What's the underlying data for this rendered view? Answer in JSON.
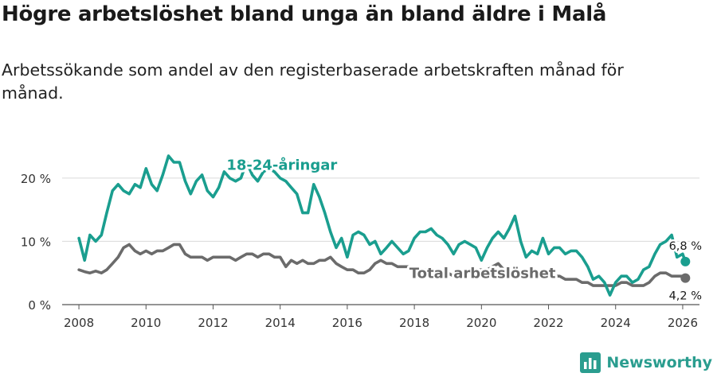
{
  "title": "Högre arbetslöshet bland unga än bland äldre i Malå",
  "subtitle": "Arbetssökande som andel av den registerbaserade arbetskraften månad för månad.",
  "brand": {
    "name": "Newsworthy",
    "icon": "newsworthy-logo-icon"
  },
  "colors": {
    "youth": "#1a9e8f",
    "total": "#6b6b6b",
    "grid": "#d9d9d9",
    "axis": "#555555",
    "brand": "#2a9d8f"
  },
  "chart_data": {
    "type": "line",
    "title": "Högre arbetslöshet bland unga än bland äldre i Malå",
    "xlabel": "",
    "ylabel": "",
    "xlim": [
      2007.5,
      2026.5
    ],
    "ylim": [
      0,
      23
    ],
    "x_ticks": [
      2008,
      2010,
      2012,
      2014,
      2016,
      2018,
      2020,
      2022,
      2024,
      2026
    ],
    "x_tick_labels": [
      "2008",
      "2010",
      "2012",
      "2014",
      "2016",
      "2018",
      "2020",
      "2022",
      "2024",
      "2026"
    ],
    "y_ticks": [
      0,
      10,
      20
    ],
    "y_tick_labels": [
      "0 %",
      "10 %",
      "20 %"
    ],
    "grid": true,
    "legend": "inline labels",
    "series": [
      {
        "name": "18-24-åringar",
        "label": "18-24-åringar",
        "end_label": "6,8 %",
        "x": [
          2008.0,
          2008.17,
          2008.33,
          2008.5,
          2008.67,
          2008.83,
          2009.0,
          2009.17,
          2009.33,
          2009.5,
          2009.67,
          2009.83,
          2010.0,
          2010.17,
          2010.33,
          2010.5,
          2010.67,
          2010.83,
          2011.0,
          2011.17,
          2011.33,
          2011.5,
          2011.67,
          2011.83,
          2012.0,
          2012.17,
          2012.33,
          2012.5,
          2012.67,
          2012.83,
          2013.0,
          2013.17,
          2013.33,
          2013.5,
          2013.67,
          2013.83,
          2014.0,
          2014.17,
          2014.33,
          2014.5,
          2014.67,
          2014.83,
          2015.0,
          2015.17,
          2015.33,
          2015.5,
          2015.67,
          2015.83,
          2016.0,
          2016.17,
          2016.33,
          2016.5,
          2016.67,
          2016.83,
          2017.0,
          2017.17,
          2017.33,
          2017.5,
          2017.67,
          2017.83,
          2018.0,
          2018.17,
          2018.33,
          2018.5,
          2018.67,
          2018.83,
          2019.0,
          2019.17,
          2019.33,
          2019.5,
          2019.67,
          2019.83,
          2020.0,
          2020.17,
          2020.33,
          2020.5,
          2020.67,
          2020.83,
          2021.0,
          2021.17,
          2021.33,
          2021.5,
          2021.67,
          2021.83,
          2022.0,
          2022.17,
          2022.33,
          2022.5,
          2022.67,
          2022.83,
          2023.0,
          2023.17,
          2023.33,
          2023.5,
          2023.67,
          2023.83,
          2024.0,
          2024.17,
          2024.33,
          2024.5,
          2024.67,
          2024.83,
          2025.0,
          2025.17,
          2025.33,
          2025.5,
          2025.67,
          2025.83,
          2026.0,
          2026.08
        ],
        "values": [
          10.5,
          7.0,
          11.0,
          10.0,
          11.0,
          14.5,
          18.0,
          19.0,
          18.0,
          17.5,
          19.0,
          18.5,
          21.5,
          19.0,
          18.0,
          20.5,
          23.5,
          22.5,
          22.5,
          19.5,
          17.5,
          19.5,
          20.5,
          18.0,
          17.0,
          18.5,
          21.0,
          20.0,
          19.5,
          20.0,
          22.5,
          20.5,
          19.5,
          21.0,
          21.5,
          21.0,
          20.0,
          19.5,
          18.5,
          17.5,
          14.5,
          14.5,
          19.0,
          17.0,
          14.5,
          11.5,
          9.0,
          10.5,
          7.5,
          11.0,
          11.5,
          11.0,
          9.5,
          10.0,
          8.0,
          9.0,
          10.0,
          9.0,
          8.0,
          8.5,
          10.5,
          11.5,
          11.5,
          12.0,
          11.0,
          10.5,
          9.5,
          8.0,
          9.5,
          10.0,
          9.5,
          9.0,
          7.0,
          9.0,
          10.5,
          11.5,
          10.5,
          12.0,
          14.0,
          10.0,
          7.5,
          8.5,
          8.0,
          10.5,
          8.0,
          9.0,
          9.0,
          8.0,
          8.5,
          8.5,
          7.5,
          6.0,
          4.0,
          4.5,
          3.5,
          1.5,
          3.5,
          4.5,
          4.5,
          3.5,
          4.0,
          5.5,
          6.0,
          8.0,
          9.5,
          10.0,
          11.0,
          7.5,
          8.0,
          6.8
        ]
      },
      {
        "name": "Total arbetslöshet",
        "label": "Total arbetslöshet",
        "end_label": "4,2 %",
        "x": [
          2008.0,
          2008.17,
          2008.33,
          2008.5,
          2008.67,
          2008.83,
          2009.0,
          2009.17,
          2009.33,
          2009.5,
          2009.67,
          2009.83,
          2010.0,
          2010.17,
          2010.33,
          2010.5,
          2010.67,
          2010.83,
          2011.0,
          2011.17,
          2011.33,
          2011.5,
          2011.67,
          2011.83,
          2012.0,
          2012.17,
          2012.33,
          2012.5,
          2012.67,
          2012.83,
          2013.0,
          2013.17,
          2013.33,
          2013.5,
          2013.67,
          2013.83,
          2014.0,
          2014.17,
          2014.33,
          2014.5,
          2014.67,
          2014.83,
          2015.0,
          2015.17,
          2015.33,
          2015.5,
          2015.67,
          2015.83,
          2016.0,
          2016.17,
          2016.33,
          2016.5,
          2016.67,
          2016.83,
          2017.0,
          2017.17,
          2017.33,
          2017.5,
          2017.67,
          2017.83,
          2018.0,
          2018.17,
          2018.33,
          2018.5,
          2018.67,
          2018.83,
          2019.0,
          2019.17,
          2019.33,
          2019.5,
          2019.67,
          2019.83,
          2020.0,
          2020.17,
          2020.33,
          2020.5,
          2020.67,
          2020.83,
          2021.0,
          2021.17,
          2021.33,
          2021.5,
          2021.67,
          2021.83,
          2022.0,
          2022.17,
          2022.33,
          2022.5,
          2022.67,
          2022.83,
          2023.0,
          2023.17,
          2023.33,
          2023.5,
          2023.67,
          2023.83,
          2024.0,
          2024.17,
          2024.33,
          2024.5,
          2024.67,
          2024.83,
          2025.0,
          2025.17,
          2025.33,
          2025.5,
          2025.67,
          2025.83,
          2026.0,
          2026.08
        ],
        "values": [
          5.5,
          5.2,
          5.0,
          5.3,
          5.0,
          5.5,
          6.5,
          7.5,
          9.0,
          9.5,
          8.5,
          8.0,
          8.5,
          8.0,
          8.5,
          8.5,
          9.0,
          9.5,
          9.5,
          8.0,
          7.5,
          7.5,
          7.5,
          7.0,
          7.5,
          7.5,
          7.5,
          7.5,
          7.0,
          7.5,
          8.0,
          8.0,
          7.5,
          8.0,
          8.0,
          7.5,
          7.5,
          6.0,
          7.0,
          6.5,
          7.0,
          6.5,
          6.5,
          7.0,
          7.0,
          7.5,
          6.5,
          6.0,
          5.5,
          5.5,
          5.0,
          5.0,
          5.5,
          6.5,
          7.0,
          6.5,
          6.5,
          6.0,
          6.0,
          6.0,
          6.0,
          5.5,
          5.5,
          5.5,
          5.5,
          5.0,
          5.0,
          4.5,
          5.0,
          5.5,
          5.5,
          5.5,
          5.5,
          5.5,
          6.0,
          6.5,
          5.5,
          5.5,
          5.5,
          5.0,
          5.0,
          4.5,
          4.5,
          4.5,
          4.5,
          4.5,
          4.5,
          4.0,
          4.0,
          4.0,
          3.5,
          3.5,
          3.0,
          3.0,
          3.0,
          3.0,
          3.0,
          3.5,
          3.5,
          3.0,
          3.0,
          3.0,
          3.5,
          4.5,
          5.0,
          5.0,
          4.5,
          4.5,
          4.5,
          4.2
        ]
      }
    ]
  }
}
